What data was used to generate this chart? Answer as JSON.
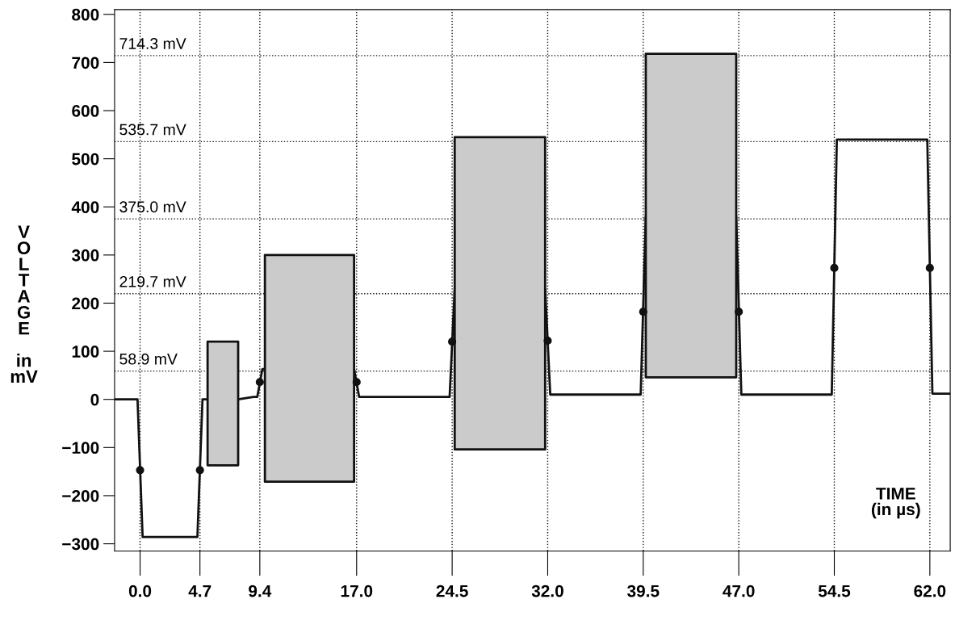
{
  "chart_data": {
    "type": "line",
    "xlabel": "TIME\n(in µs)",
    "ylabel": "VOLTAGE in mV",
    "xlim": [
      -2.0,
      63.6
    ],
    "xticks": [
      {
        "value": 0.0,
        "label": "0.0"
      },
      4.7,
      9.4,
      {
        "value": 17.0,
        "label": "17.0"
      },
      24.5,
      {
        "value": 32.0,
        "label": "32.0"
      },
      39.5,
      {
        "value": 47.0,
        "label": "47.0"
      },
      54.5,
      {
        "value": 62.0,
        "label": "62.0"
      }
    ],
    "ylim": [
      -315,
      810
    ],
    "yticks": [
      -300,
      -200,
      -100,
      0,
      100,
      200,
      300,
      400,
      500,
      600,
      700,
      800
    ],
    "grid": false,
    "legend": false,
    "series": [
      {
        "color": "#111111",
        "marker": "none",
        "line_style": "solid",
        "x": [
          -2.0,
          -0.2,
          0.2,
          4.5,
          4.9,
          5.3,
          7.7,
          8.9,
          9.2,
          9.6,
          9.8,
          16.8,
          17.2,
          24.3,
          24.7,
          31.8,
          32.2,
          39.3,
          39.7,
          46.8,
          47.2,
          54.3,
          54.7,
          61.8,
          62.2,
          63.6
        ],
        "values": [
          0,
          0,
          -286,
          -286,
          0,
          0,
          0,
          5,
          5,
          63,
          63,
          63,
          5,
          5,
          230,
          230,
          10,
          10,
          380,
          380,
          10,
          10,
          540,
          540,
          12,
          12
        ],
        "lower": [
          null,
          null,
          null,
          null,
          null,
          -137,
          -137,
          null,
          null,
          null,
          -171,
          -171,
          null,
          null,
          -104,
          -104,
          null,
          null,
          46,
          46,
          null,
          null,
          null,
          null,
          null,
          null
        ],
        "upper": [
          null,
          null,
          null,
          null,
          null,
          120,
          120,
          null,
          null,
          null,
          300,
          300,
          null,
          null,
          545,
          545,
          null,
          null,
          718,
          718,
          null,
          null,
          null,
          null,
          null,
          null
        ]
      },
      {
        "type": "scatter",
        "color": "#111111",
        "marker": "circle",
        "x": [
          0.0,
          4.7,
          9.4,
          17.0,
          24.5,
          32.0,
          39.5,
          47.0,
          54.5,
          62.0
        ],
        "values": [
          -147,
          -147,
          36,
          36,
          120,
          122,
          182,
          182,
          273,
          273
        ]
      }
    ],
    "ref_lines": [
      {
        "axis": "y",
        "value": 714.3,
        "label": "714.3 mV",
        "line_style": "dotted"
      },
      {
        "axis": "y",
        "value": 535.7,
        "label": "535.7 mV",
        "line_style": "dotted"
      },
      {
        "axis": "y",
        "value": 375.0,
        "label": "375.0 mV",
        "line_style": "dotted"
      },
      {
        "axis": "y",
        "value": 219.7,
        "label": "219.7 mV",
        "line_style": "dotted"
      },
      {
        "axis": "y",
        "value": 58.9,
        "label": "58.9 mV",
        "line_style": "dotted"
      },
      {
        "axis": "x",
        "value": 0.0,
        "line_style": "dotted"
      },
      {
        "axis": "x",
        "value": 4.7,
        "line_style": "dotted"
      },
      {
        "axis": "x",
        "value": 9.4,
        "line_style": "dotted"
      },
      {
        "axis": "x",
        "value": 17.0,
        "line_style": "dotted"
      },
      {
        "axis": "x",
        "value": 24.5,
        "line_style": "dotted"
      },
      {
        "axis": "x",
        "value": 32.0,
        "line_style": "dotted"
      },
      {
        "axis": "x",
        "value": 39.5,
        "line_style": "dotted"
      },
      {
        "axis": "x",
        "value": 47.0,
        "line_style": "dotted"
      },
      {
        "axis": "x",
        "value": 54.5,
        "line_style": "dotted"
      },
      {
        "axis": "x",
        "value": 62.0,
        "line_style": "dotted"
      }
    ]
  }
}
